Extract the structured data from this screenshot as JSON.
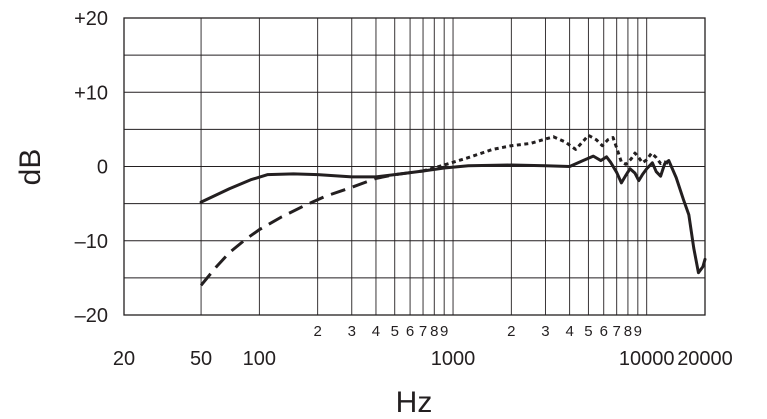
{
  "chart_data": {
    "type": "line",
    "title": "",
    "xlabel": "Hz",
    "ylabel": "dB",
    "x_scale": "log",
    "xlim": [
      20,
      20000
    ],
    "ylim": [
      -20,
      20
    ],
    "grid": true,
    "y_ticks": [
      {
        "value": 20,
        "label": "+20"
      },
      {
        "value": 10,
        "label": "+10"
      },
      {
        "value": 0,
        "label": "0"
      },
      {
        "value": -10,
        "label": "–10"
      },
      {
        "value": -20,
        "label": "–20"
      }
    ],
    "x_major_ticks": [
      {
        "value": 20,
        "label": "20"
      },
      {
        "value": 50,
        "label": "50"
      },
      {
        "value": 100,
        "label": "100"
      },
      {
        "value": 1000,
        "label": "1000"
      },
      {
        "value": 10000,
        "label": "10000"
      },
      {
        "value": 20000,
        "label": "20000"
      }
    ],
    "x_minor_ticks": [
      {
        "value": 200,
        "label": "2"
      },
      {
        "value": 300,
        "label": "3"
      },
      {
        "value": 400,
        "label": "4"
      },
      {
        "value": 500,
        "label": "5"
      },
      {
        "value": 600,
        "label": "6"
      },
      {
        "value": 700,
        "label": "7"
      },
      {
        "value": 800,
        "label": "8"
      },
      {
        "value": 900,
        "label": "9"
      },
      {
        "value": 2000,
        "label": "2"
      },
      {
        "value": 3000,
        "label": "3"
      },
      {
        "value": 4000,
        "label": "4"
      },
      {
        "value": 5000,
        "label": "5"
      },
      {
        "value": 6000,
        "label": "6"
      },
      {
        "value": 7000,
        "label": "7"
      },
      {
        "value": 8000,
        "label": "8"
      },
      {
        "value": 9000,
        "label": "9"
      }
    ],
    "x_gridlines": [
      50,
      100,
      200,
      300,
      400,
      500,
      600,
      700,
      800,
      900,
      1000,
      2000,
      3000,
      4000,
      5000,
      6000,
      7000,
      8000,
      9000,
      10000
    ],
    "y_gridlines": [
      -15,
      -10,
      -5,
      0,
      5,
      10,
      15
    ],
    "series": [
      {
        "style": "solid",
        "color": "#231f20",
        "points": [
          [
            50,
            -4.8
          ],
          [
            70,
            -3.0
          ],
          [
            90,
            -1.8
          ],
          [
            110,
            -1.1
          ],
          [
            150,
            -1.0
          ],
          [
            200,
            -1.1
          ],
          [
            300,
            -1.4
          ],
          [
            400,
            -1.4
          ],
          [
            500,
            -1.1
          ],
          [
            700,
            -0.6
          ],
          [
            900,
            -0.2
          ],
          [
            1200,
            0.1
          ],
          [
            2000,
            0.2
          ],
          [
            3000,
            0.1
          ],
          [
            4000,
            0.0
          ],
          [
            4700,
            0.8
          ],
          [
            5300,
            1.4
          ],
          [
            5800,
            0.8
          ],
          [
            6200,
            1.3
          ],
          [
            6500,
            0.6
          ],
          [
            7000,
            -0.8
          ],
          [
            7400,
            -2.2
          ],
          [
            7800,
            -1.2
          ],
          [
            8200,
            -0.3
          ],
          [
            8700,
            -0.9
          ],
          [
            9100,
            -1.9
          ],
          [
            9500,
            -1.1
          ],
          [
            10000,
            -0.3
          ],
          [
            10700,
            0.5
          ],
          [
            11200,
            -0.7
          ],
          [
            11800,
            -1.3
          ],
          [
            12400,
            0.4
          ],
          [
            13000,
            0.8
          ],
          [
            14200,
            -1.5
          ],
          [
            15500,
            -4.5
          ],
          [
            16500,
            -6.5
          ],
          [
            17500,
            -11.0
          ],
          [
            18500,
            -14.3
          ],
          [
            19500,
            -13.5
          ],
          [
            20000,
            -12.5
          ]
        ]
      },
      {
        "style": "dotted",
        "color": "#231f20",
        "points": [
          [
            700,
            -0.6
          ],
          [
            900,
            0.2
          ],
          [
            1200,
            1.2
          ],
          [
            1600,
            2.3
          ],
          [
            2000,
            2.8
          ],
          [
            2500,
            3.1
          ],
          [
            3000,
            3.7
          ],
          [
            3300,
            4.0
          ],
          [
            3800,
            3.3
          ],
          [
            4300,
            2.3
          ],
          [
            4700,
            3.4
          ],
          [
            5000,
            4.2
          ],
          [
            5500,
            3.6
          ],
          [
            5900,
            2.8
          ],
          [
            6300,
            3.6
          ],
          [
            6700,
            3.9
          ],
          [
            7000,
            2.5
          ],
          [
            7400,
            0.6
          ],
          [
            7800,
            0.3
          ],
          [
            8300,
            1.0
          ],
          [
            8700,
            1.8
          ],
          [
            9100,
            1.2
          ],
          [
            9500,
            0.5
          ],
          [
            10000,
            0.9
          ],
          [
            10600,
            1.8
          ],
          [
            11200,
            1.2
          ],
          [
            11800,
            0.4
          ],
          [
            12400,
            0.6
          ],
          [
            13000,
            0.4
          ]
        ]
      },
      {
        "style": "dashed",
        "color": "#231f20",
        "points": [
          [
            50,
            -16.0
          ],
          [
            60,
            -13.5
          ],
          [
            70,
            -11.6
          ],
          [
            85,
            -9.8
          ],
          [
            100,
            -8.5
          ],
          [
            130,
            -6.8
          ],
          [
            170,
            -5.3
          ],
          [
            220,
            -4.0
          ],
          [
            300,
            -2.8
          ],
          [
            400,
            -1.6
          ],
          [
            500,
            -1.1
          ],
          [
            700,
            -0.6
          ]
        ]
      }
    ]
  }
}
